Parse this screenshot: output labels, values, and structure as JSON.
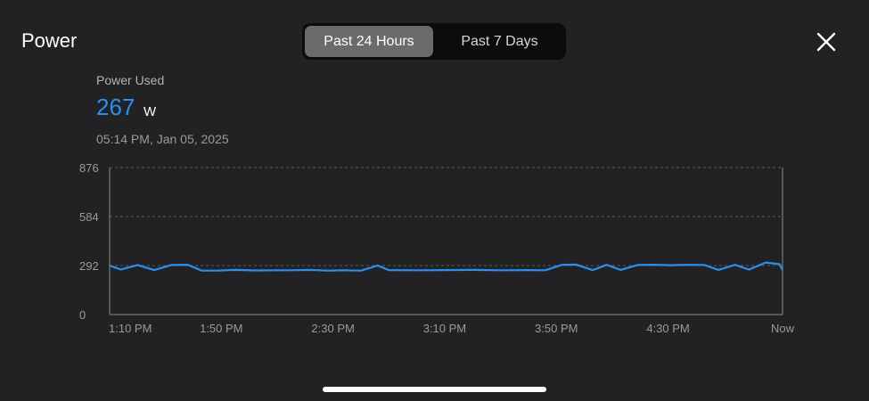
{
  "header": {
    "title": "Power",
    "tabs": [
      {
        "label": "Past 24 Hours",
        "selected": true
      },
      {
        "label": "Past 7 Days",
        "selected": false
      }
    ],
    "close_icon": "close-icon"
  },
  "metric": {
    "label": "Power Used",
    "value": "267",
    "unit": "W",
    "timestamp": "05:14 PM, Jan 05, 2025"
  },
  "colors": {
    "accent": "#2b8ff0",
    "background": "#222224",
    "tab_active": "#6b6b6e"
  },
  "chart_data": {
    "type": "line",
    "ylim": [
      0,
      876
    ],
    "y_ticks": [
      "0",
      "292",
      "584",
      "876"
    ],
    "x_tick_labels": [
      "1:10 PM",
      "1:50 PM",
      "2:30 PM",
      "3:10 PM",
      "3:50 PM",
      "4:30 PM",
      "Now"
    ],
    "x_tick_minutes": [
      0,
      40,
      80,
      120,
      160,
      200,
      241
    ],
    "x_range_minutes": [
      0,
      241
    ],
    "grid": "horizontal-dashed",
    "series": [
      {
        "values": [
          [
            0,
            292
          ],
          [
            4,
            268
          ],
          [
            10,
            295
          ],
          [
            16,
            265
          ],
          [
            22,
            295
          ],
          [
            28,
            297
          ],
          [
            33,
            262
          ],
          [
            38,
            262
          ],
          [
            45,
            266
          ],
          [
            52,
            263
          ],
          [
            60,
            264
          ],
          [
            65,
            264
          ],
          [
            72,
            266
          ],
          [
            78,
            262
          ],
          [
            84,
            264
          ],
          [
            90,
            262
          ],
          [
            96,
            292
          ],
          [
            100,
            265
          ],
          [
            110,
            264
          ],
          [
            120,
            265
          ],
          [
            130,
            266
          ],
          [
            140,
            264
          ],
          [
            150,
            265
          ],
          [
            156,
            264
          ],
          [
            162,
            296
          ],
          [
            167,
            298
          ],
          [
            173,
            265
          ],
          [
            178,
            296
          ],
          [
            183,
            266
          ],
          [
            189,
            295
          ],
          [
            195,
            297
          ],
          [
            201,
            294
          ],
          [
            207,
            296
          ],
          [
            213,
            295
          ],
          [
            218,
            266
          ],
          [
            224,
            296
          ],
          [
            229,
            268
          ],
          [
            235,
            310
          ],
          [
            240,
            300
          ],
          [
            246,
            297
          ],
          [
            252,
            294
          ],
          [
            258,
            295
          ],
          [
            264,
            296
          ],
          [
            268,
            295
          ],
          [
            273,
            265
          ],
          [
            241,
            265
          ]
        ]
      }
    ]
  }
}
